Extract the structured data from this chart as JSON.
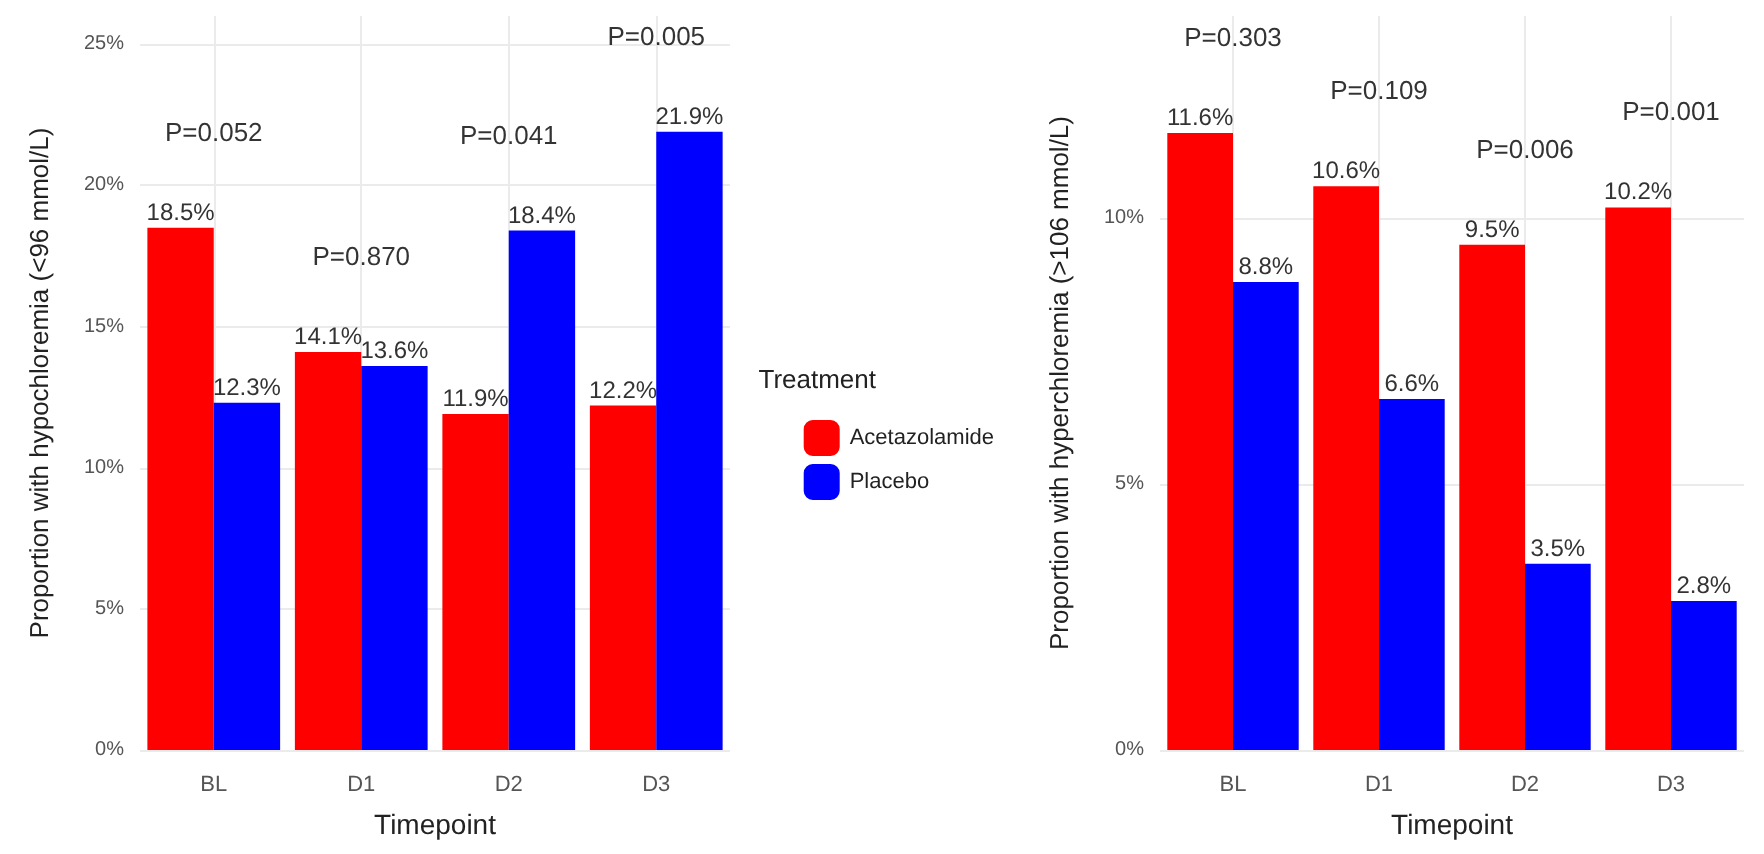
{
  "chart_data": [
    {
      "type": "bar",
      "xlabel": "Timepoint",
      "ylabel": "Proportion with hypochloremia (<96 mmol/L)",
      "legend_title": "Treatment",
      "legend": "right",
      "grid": true,
      "categories": [
        "BL",
        "D1",
        "D2",
        "D3"
      ],
      "series": [
        {
          "name": "Acetazolamide",
          "color": "#ff0000",
          "values": [
            18.5,
            14.1,
            11.9,
            12.2
          ],
          "value_labels": [
            "18.5%",
            "14.1%",
            "11.9%",
            "12.2%"
          ]
        },
        {
          "name": "Placebo",
          "color": "#0000ff",
          "values": [
            12.3,
            13.6,
            18.4,
            21.9
          ],
          "value_labels": [
            "12.3%",
            "13.6%",
            "18.4%",
            "21.9%"
          ]
        }
      ],
      "ylim": [
        0,
        26
      ],
      "yticks": [
        {
          "value": 0,
          "label": "0%"
        },
        {
          "value": 5,
          "label": "5%"
        },
        {
          "value": 10,
          "label": "10%"
        },
        {
          "value": 15,
          "label": "15%"
        },
        {
          "value": 20,
          "label": "20%"
        },
        {
          "value": 25,
          "label": "25%"
        }
      ],
      "annotations": [
        "P=0.052",
        "P=0.870",
        "P=0.041",
        "P=0.005"
      ]
    },
    {
      "type": "bar",
      "xlabel": "Timepoint",
      "ylabel": "Proportion with hyperchloremia (>106 mmol/L)",
      "grid": true,
      "categories": [
        "BL",
        "D1",
        "D2",
        "D3"
      ],
      "series": [
        {
          "color": "#ff0000",
          "values": [
            11.6,
            10.6,
            9.5,
            10.2
          ],
          "value_labels": [
            "11.6%",
            "10.6%",
            "9.5%",
            "10.2%"
          ]
        },
        {
          "color": "#0000ff",
          "values": [
            8.8,
            6.6,
            3.5,
            2.8
          ],
          "value_labels": [
            "8.8%",
            "6.6%",
            "3.5%",
            "2.8%"
          ]
        }
      ],
      "ylim": [
        0,
        13.8
      ],
      "yticks": [
        {
          "value": 0,
          "label": "0%"
        },
        {
          "value": 5,
          "label": "5%"
        },
        {
          "value": 10,
          "label": "10%"
        }
      ],
      "annotations": [
        "P=0.303",
        "P=0.109",
        "P=0.006",
        "P=0.001"
      ]
    }
  ]
}
